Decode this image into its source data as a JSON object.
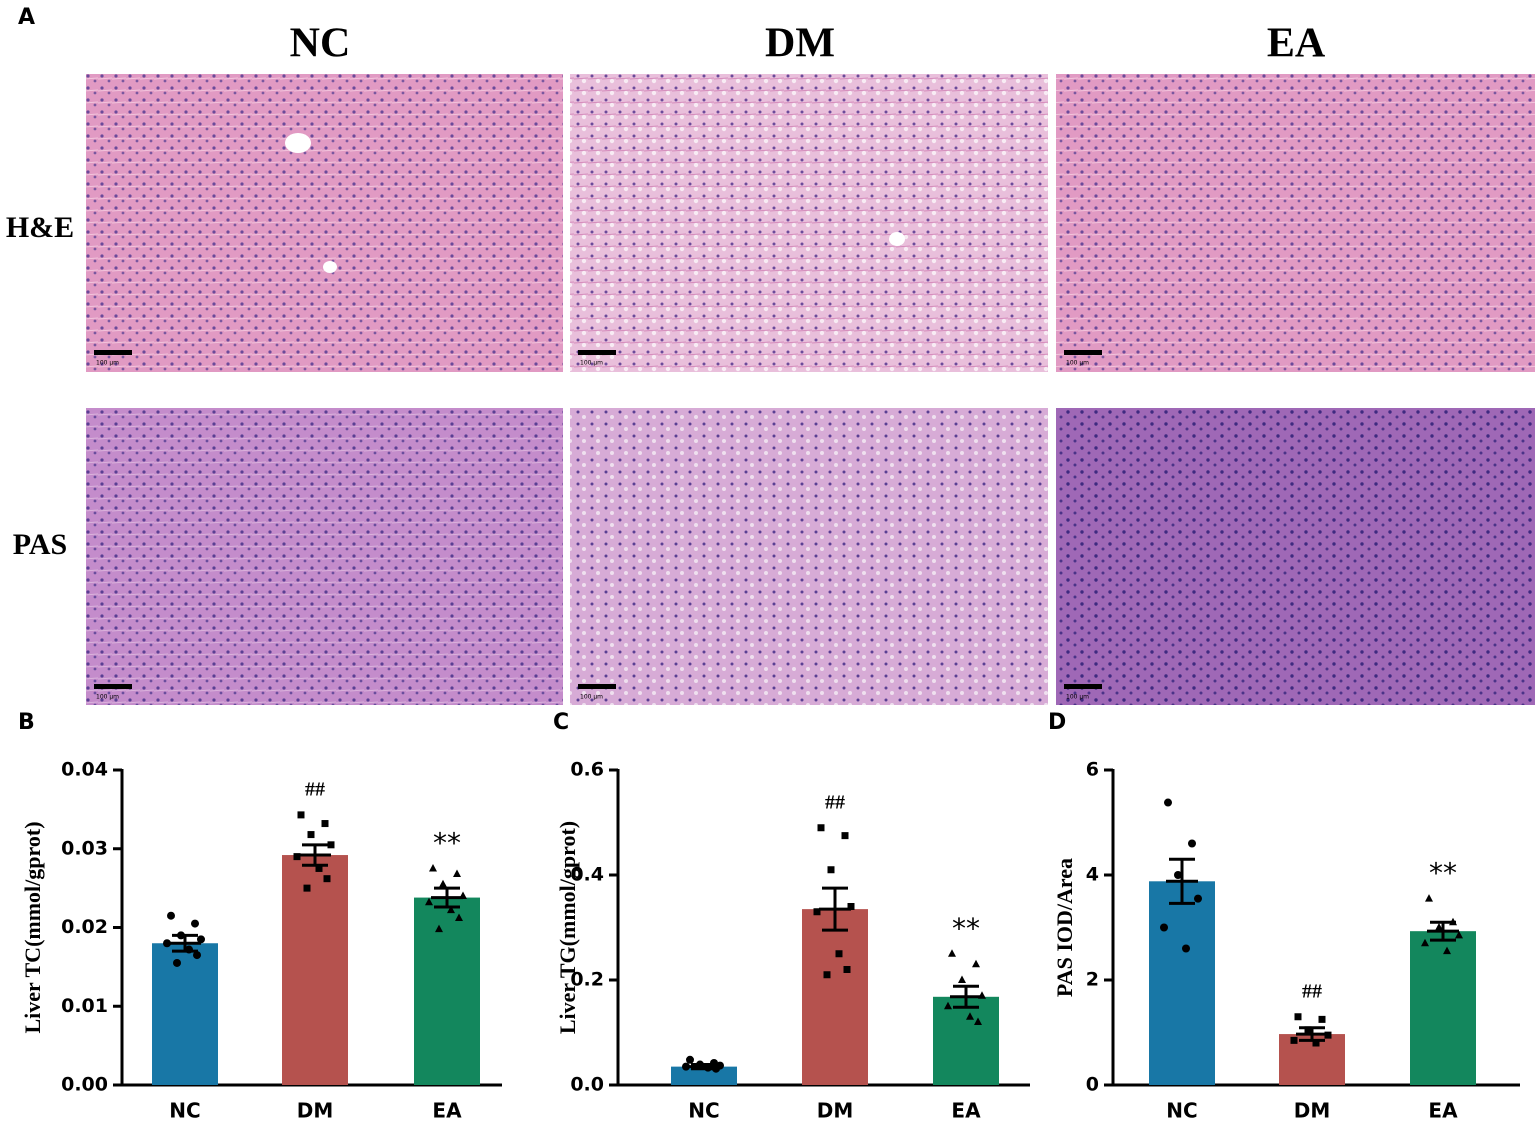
{
  "panel_a": {
    "label": "A",
    "columns": [
      "NC",
      "DM",
      "EA"
    ],
    "rows": [
      "H&E",
      "PAS"
    ],
    "scale_bar": "100 μm"
  },
  "chart_data": [
    {
      "type": "bar",
      "label": "B",
      "ylabel": "Liver TC(mmol/gprot)",
      "categories": [
        "NC",
        "DM",
        "EA"
      ],
      "values": [
        0.018,
        0.0292,
        0.0238
      ],
      "errors": [
        0.001,
        0.0013,
        0.0012
      ],
      "points": [
        [
          0.0215,
          0.0205,
          0.019,
          0.0185,
          0.018,
          0.0172,
          0.0165,
          0.0155
        ],
        [
          0.0343,
          0.0332,
          0.0318,
          0.0305,
          0.029,
          0.0275,
          0.0262,
          0.025
        ],
        [
          0.0275,
          0.0268,
          0.0255,
          0.024,
          0.0232,
          0.0222,
          0.0212,
          0.0198
        ]
      ],
      "annotations": [
        null,
        "##",
        "**"
      ],
      "colors": [
        "#1877a6",
        "#b5524e",
        "#13875d"
      ],
      "markers": [
        "circle",
        "square",
        "triangle"
      ],
      "ylim": [
        0,
        0.04
      ],
      "yticks": [
        {
          "value": 0,
          "label": "0.00"
        },
        {
          "value": 0.01,
          "label": "0.01"
        },
        {
          "value": 0.02,
          "label": "0.02"
        },
        {
          "value": 0.03,
          "label": "0.03"
        },
        {
          "value": 0.04,
          "label": "0.04"
        }
      ]
    },
    {
      "type": "bar",
      "label": "C",
      "ylabel": "Liver TG(mmol/gprot)",
      "categories": [
        "NC",
        "DM",
        "EA"
      ],
      "values": [
        0.035,
        0.335,
        0.168
      ],
      "errors": [
        0.004,
        0.04,
        0.02
      ],
      "points": [
        [
          0.048,
          0.042,
          0.039,
          0.037,
          0.035,
          0.033,
          0.031
        ],
        [
          0.49,
          0.475,
          0.41,
          0.34,
          0.33,
          0.25,
          0.22,
          0.21
        ],
        [
          0.25,
          0.23,
          0.2,
          0.17,
          0.15,
          0.13,
          0.12
        ]
      ],
      "annotations": [
        null,
        "##",
        "**"
      ],
      "colors": [
        "#1877a6",
        "#b5524e",
        "#13875d"
      ],
      "markers": [
        "circle",
        "square",
        "triangle"
      ],
      "ylim": [
        0,
        0.6
      ],
      "yticks": [
        {
          "value": 0,
          "label": "0.0"
        },
        {
          "value": 0.2,
          "label": "0.2"
        },
        {
          "value": 0.4,
          "label": "0.4"
        },
        {
          "value": 0.6,
          "label": "0.6"
        }
      ]
    },
    {
      "type": "bar",
      "label": "D",
      "ylabel": "PAS  IOD/Area",
      "categories": [
        "NC",
        "DM",
        "EA"
      ],
      "values": [
        3.88,
        0.97,
        2.93
      ],
      "errors": [
        0.42,
        0.12,
        0.17
      ],
      "points": [
        [
          5.38,
          4.6,
          4.0,
          3.55,
          3.0,
          2.6
        ],
        [
          1.3,
          1.25,
          1.05,
          0.95,
          0.85,
          0.8
        ],
        [
          3.55,
          3.1,
          3.0,
          2.85,
          2.7,
          2.55
        ]
      ],
      "annotations": [
        null,
        "##",
        "**"
      ],
      "colors": [
        "#1877a6",
        "#b5524e",
        "#13875d"
      ],
      "markers": [
        "circle",
        "square",
        "triangle"
      ],
      "ylim": [
        0,
        6
      ],
      "yticks": [
        0,
        2,
        4,
        6
      ]
    }
  ]
}
